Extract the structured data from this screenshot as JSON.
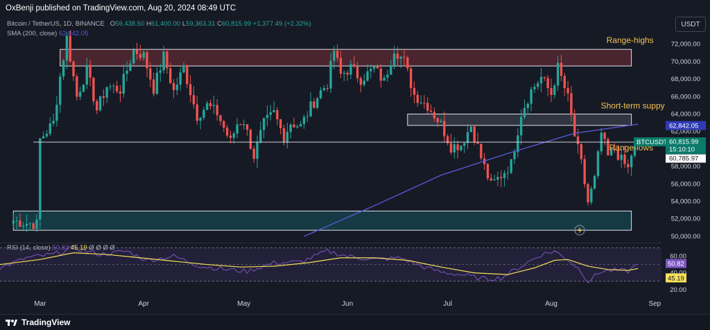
{
  "header": {
    "published": "OxBenji published on TradingView.com, Aug 20, 2024 08:49 UTC"
  },
  "legend": {
    "symbol": "Bitcoin / TetherUS, 1D, BINANCE",
    "o_label": "O",
    "o_value": "59,438.50",
    "h_label": "H",
    "h_value": "61,400.00",
    "l_label": "L",
    "l_value": "59,363.31",
    "c_label": "C",
    "c_value": "60,815.99",
    "change": "+1,377.49 (+2.32%)",
    "sma_label": "SMA (200, close)",
    "sma_value": "62,842.05",
    "rsi_label": "RSI (14, close)",
    "rsi_value1": "50.82",
    "rsi_value2": "45.19",
    "rsi_extra": "Ø Ø Ø Ø"
  },
  "currency_button": "USDT",
  "annotations": {
    "range_highs": "Range-highs",
    "short_term_supply": "Short-term suppy",
    "range_lows": "Range-lows"
  },
  "price_tags": {
    "sma_tag": "62,842.05",
    "symbol_tag": "BTCUSDT",
    "last_price": "60,815.99",
    "countdown": "15:10:10",
    "line_price": "60,785.97"
  },
  "rsi_tags": {
    "rsi": "50.82",
    "rsi_ma": "45.19"
  },
  "footer": {
    "brand": "TradingView"
  },
  "colors": {
    "up": "#26a69a",
    "down": "#ef5350",
    "sma": "#5b5ce0",
    "rsi": "#7e57c2",
    "rsi_ma": "#f7e15a",
    "annotation": "#f5c451",
    "range_highs_zone": "#5c2a33",
    "supply_zone": "#3a3f4b",
    "range_lows_zone": "#17454e"
  },
  "chart_data": {
    "type": "candlestick",
    "title": "Bitcoin / TetherUS, 1D, BINANCE",
    "price_ticks": [
      50000,
      52000,
      54000,
      56000,
      58000,
      60000,
      62000,
      64000,
      66000,
      68000,
      70000,
      72000
    ],
    "price_tick_labels": [
      "50,000.00",
      "52,000.00",
      "54,000.00",
      "56,000.00",
      "58,000.00",
      "60,000.00",
      "62,000.00",
      "64,000.00",
      "66,000.00",
      "68,000.00",
      "70,000.00",
      "72,000.00"
    ],
    "ylim": [
      49600,
      73400
    ],
    "time_labels": [
      "Mar",
      "Apr",
      "May",
      "Jun",
      "Jul",
      "Aug",
      "Sep"
    ],
    "time_label_day_index": [
      0,
      31,
      61,
      92,
      122,
      153,
      184
    ],
    "xlim_days": [
      -12,
      186
    ],
    "rsi_ticks": [
      20,
      40,
      60
    ],
    "rsi_tick_labels": [
      "20.00",
      "40.00",
      "60.00"
    ],
    "rsi_ylim": [
      14,
      72
    ],
    "zones": [
      {
        "name": "Range-highs",
        "from_day": 6,
        "to_day": 177,
        "low": 69500,
        "high": 71400
      },
      {
        "name": "Short-term suppy",
        "from_day": 110,
        "to_day": 177,
        "low": 62700,
        "high": 64000
      },
      {
        "name": "Range-lows",
        "from_day": -8,
        "to_day": 177,
        "low": 50700,
        "high": 52900
      }
    ],
    "range_lows_line": 60785.97,
    "candles_anchor_close": [
      [
        -8,
        51800
      ],
      [
        -4,
        51500
      ],
      [
        -1,
        51400
      ],
      [
        0,
        61100
      ],
      [
        4,
        63000
      ],
      [
        6,
        68300
      ],
      [
        8,
        72700
      ],
      [
        11,
        66000
      ],
      [
        14,
        69000
      ],
      [
        17,
        64500
      ],
      [
        20,
        67200
      ],
      [
        24,
        66800
      ],
      [
        28,
        71300
      ],
      [
        31,
        70700
      ],
      [
        34,
        66900
      ],
      [
        37,
        70600
      ],
      [
        40,
        66600
      ],
      [
        43,
        69300
      ],
      [
        47,
        63800
      ],
      [
        50,
        65000
      ],
      [
        53,
        64100
      ],
      [
        57,
        60800
      ],
      [
        59,
        62900
      ],
      [
        61,
        63200
      ],
      [
        64,
        59200
      ],
      [
        67,
        62900
      ],
      [
        70,
        64100
      ],
      [
        73,
        61400
      ],
      [
        75,
        63000
      ],
      [
        78,
        62600
      ],
      [
        81,
        64800
      ],
      [
        84,
        66600
      ],
      [
        86,
        67500
      ],
      [
        88,
        71300
      ],
      [
        90,
        68500
      ],
      [
        93,
        69300
      ],
      [
        96,
        68000
      ],
      [
        100,
        69200
      ],
      [
        103,
        67700
      ],
      [
        106,
        71500
      ],
      [
        109,
        70000
      ],
      [
        112,
        66200
      ],
      [
        116,
        65000
      ],
      [
        120,
        62800
      ],
      [
        123,
        60300
      ],
      [
        126,
        60500
      ],
      [
        129,
        62700
      ],
      [
        132,
        59000
      ],
      [
        135,
        55800
      ],
      [
        138,
        57000
      ],
      [
        141,
        58300
      ],
      [
        144,
        64100
      ],
      [
        147,
        66700
      ],
      [
        150,
        68200
      ],
      [
        153,
        66300
      ],
      [
        155,
        69300
      ],
      [
        158,
        65800
      ],
      [
        160,
        61500
      ],
      [
        162,
        58300
      ],
      [
        164,
        53900
      ],
      [
        166,
        56500
      ],
      [
        168,
        61800
      ],
      [
        170,
        59100
      ],
      [
        172,
        60000
      ],
      [
        174,
        58700
      ],
      [
        176,
        57700
      ],
      [
        177,
        59400
      ],
      [
        179,
        60816
      ]
    ],
    "sma_200": [
      [
        79,
        50000
      ],
      [
        100,
        53500
      ],
      [
        120,
        57000
      ],
      [
        140,
        59500
      ],
      [
        160,
        61800
      ],
      [
        179,
        62842
      ]
    ],
    "rsi_14_anchor": [
      [
        -12,
        46
      ],
      [
        -4,
        58
      ],
      [
        4,
        62
      ],
      [
        10,
        70
      ],
      [
        18,
        62
      ],
      [
        26,
        66
      ],
      [
        32,
        55
      ],
      [
        40,
        60
      ],
      [
        48,
        48
      ],
      [
        56,
        44
      ],
      [
        62,
        42
      ],
      [
        70,
        52
      ],
      [
        78,
        53
      ],
      [
        86,
        66
      ],
      [
        92,
        60
      ],
      [
        100,
        56
      ],
      [
        108,
        58
      ],
      [
        114,
        48
      ],
      [
        120,
        41
      ],
      [
        126,
        38
      ],
      [
        132,
        33
      ],
      [
        138,
        34
      ],
      [
        144,
        48
      ],
      [
        150,
        62
      ],
      [
        154,
        66
      ],
      [
        158,
        56
      ],
      [
        162,
        42
      ],
      [
        164,
        30
      ],
      [
        168,
        42
      ],
      [
        172,
        43
      ],
      [
        176,
        42
      ],
      [
        179,
        50.8
      ]
    ],
    "rsi_ma_anchor": [
      [
        -12,
        50
      ],
      [
        0,
        56
      ],
      [
        10,
        64
      ],
      [
        20,
        62
      ],
      [
        30,
        58
      ],
      [
        40,
        54
      ],
      [
        50,
        50
      ],
      [
        60,
        47
      ],
      [
        70,
        48
      ],
      [
        80,
        52
      ],
      [
        90,
        58
      ],
      [
        100,
        58
      ],
      [
        110,
        55
      ],
      [
        120,
        47
      ],
      [
        130,
        40
      ],
      [
        140,
        38
      ],
      [
        148,
        46
      ],
      [
        154,
        55
      ],
      [
        158,
        56
      ],
      [
        164,
        48
      ],
      [
        170,
        44
      ],
      [
        176,
        43
      ],
      [
        179,
        45.2
      ]
    ]
  }
}
